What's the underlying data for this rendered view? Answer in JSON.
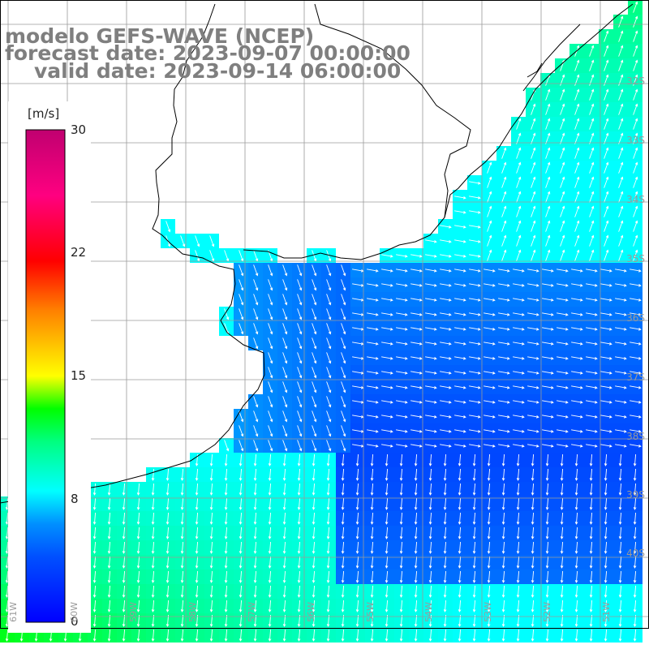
{
  "title": {
    "line1": "modelo GEFS-WAVE (NCEP)",
    "line2": "forecast date: 2023-09-07 00:00:00",
    "line3": "valid date: 2023-09-14 06:00:00"
  },
  "colorbar": {
    "unit": "[m/s]",
    "min": 0,
    "max": 30,
    "ticks": [
      "30",
      "22",
      "15",
      "8",
      "0"
    ],
    "colors": [
      "#0000ff",
      "#00a0ff",
      "#00ffff",
      "#00ff00",
      "#ffff00",
      "#ff8000",
      "#ff0000",
      "#ff0080",
      "#c00070"
    ]
  },
  "lat_labels": [
    "32S",
    "33S",
    "34S",
    "35S",
    "36S",
    "37S",
    "38S",
    "39S",
    "40S"
  ],
  "lon_labels": [
    "61W",
    "60W",
    "59W",
    "58W",
    "57W",
    "56W",
    "55W",
    "54W",
    "53W",
    "52W",
    "51W"
  ],
  "colors": {
    "land": "#ffffff",
    "grid": "#9a9a9a",
    "coast": "#000000",
    "arrows": "#ffffff"
  }
}
